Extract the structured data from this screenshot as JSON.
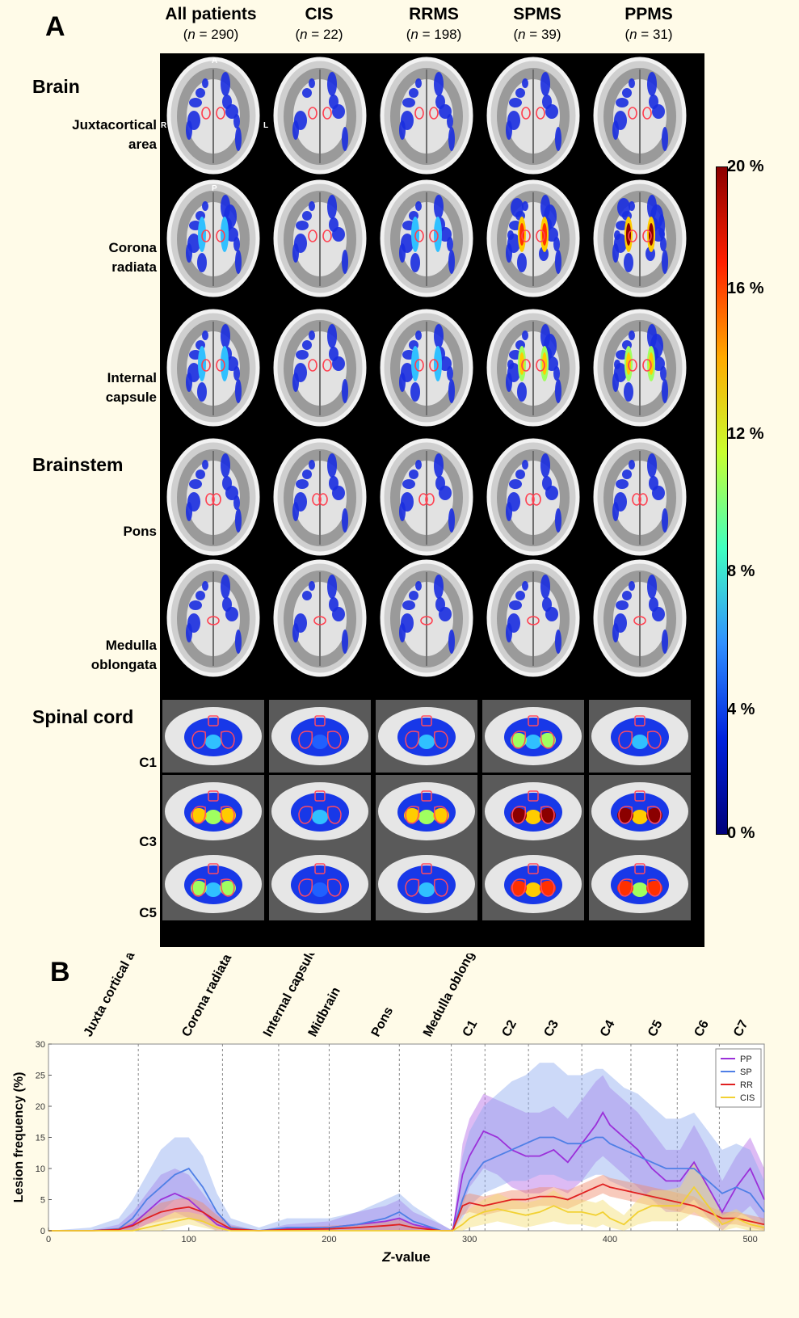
{
  "panel_a": {
    "letter": "A",
    "columns": [
      {
        "title": "All patients",
        "n_prefix": "n",
        "n_value": " = 290"
      },
      {
        "title": "CIS",
        "n_prefix": "n",
        "n_value": " = 22"
      },
      {
        "title": "RRMS",
        "n_prefix": "n",
        "n_value": " = 198"
      },
      {
        "title": "SPMS",
        "n_prefix": "n",
        "n_value": " = 39"
      },
      {
        "title": "PPMS",
        "n_prefix": "n",
        "n_value": " = 31"
      }
    ],
    "sections": {
      "brain": "Brain",
      "brainstem": "Brainstem",
      "spinal": "Spinal cord"
    },
    "rows": [
      {
        "label1": "Juxtacortical",
        "label2": "area"
      },
      {
        "label1": "Corona",
        "label2": "radiata"
      },
      {
        "label1": "Internal",
        "label2": "capsule"
      },
      {
        "label1": "Pons",
        "label2": ""
      },
      {
        "label1": "Medulla",
        "label2": "oblongata"
      },
      {
        "label1": "C1",
        "label2": ""
      },
      {
        "label1": "C3",
        "label2": ""
      },
      {
        "label1": "C5",
        "label2": ""
      }
    ],
    "orientation": {
      "anterior": "A",
      "posterior": "P",
      "right": "R",
      "left": "L"
    },
    "colorbar_ticks": [
      "20 %",
      "16 %",
      "12 %",
      "8 %",
      "4 %",
      "0 %"
    ],
    "colorbar_colors": [
      "#8b0000",
      "#ff2000",
      "#ffaa00",
      "#c8ff30",
      "#40ffc0",
      "#3090ff",
      "#0022dd",
      "#00007a"
    ]
  },
  "panel_b": {
    "letter": "B"
  },
  "chart_data": {
    "type": "line",
    "xlabel_prefix": "Z",
    "xlabel_suffix": "-value",
    "ylabel": "Lesion frequency (%)",
    "xlim": [
      0,
      510
    ],
    "ylim": [
      0,
      30
    ],
    "x_ticks": [
      "0",
      "100",
      "200",
      "300",
      "400",
      "500"
    ],
    "y_ticks": [
      "0",
      "5",
      "10",
      "15",
      "20",
      "25",
      "30"
    ],
    "regions": [
      {
        "label": "Juxta cortical area",
        "x": 30
      },
      {
        "label": "Corona radiata",
        "x": 100
      },
      {
        "label": "Internal capsule",
        "x": 158
      },
      {
        "label": "Midbrain",
        "x": 190
      },
      {
        "label": "Pons",
        "x": 235
      },
      {
        "label": "Medulla oblongata",
        "x": 272
      },
      {
        "label": "C1",
        "x": 300
      },
      {
        "label": "C2",
        "x": 328
      },
      {
        "label": "C3",
        "x": 358
      },
      {
        "label": "C4",
        "x": 398
      },
      {
        "label": "C5",
        "x": 432
      },
      {
        "label": "C6",
        "x": 465
      },
      {
        "label": "C7",
        "x": 493
      }
    ],
    "boundaries": [
      64,
      124,
      164,
      200,
      250,
      287,
      311,
      342,
      380,
      415,
      448,
      478
    ],
    "series": [
      {
        "name": "PP",
        "color": "#9b30d9",
        "band": "#b469e6",
        "x": [
          0,
          30,
          50,
          60,
          70,
          80,
          90,
          100,
          110,
          120,
          130,
          150,
          170,
          200,
          220,
          240,
          250,
          260,
          280,
          288,
          295,
          300,
          310,
          320,
          330,
          340,
          350,
          360,
          370,
          380,
          390,
          395,
          400,
          410,
          420,
          430,
          440,
          450,
          460,
          470,
          480,
          490,
          500,
          510
        ],
        "y": [
          0,
          0,
          0.2,
          1,
          3,
          5,
          6,
          5,
          3,
          1,
          0.2,
          0,
          0.3,
          0.5,
          1,
          1.5,
          2,
          1,
          0,
          0,
          9,
          12,
          16,
          15,
          13,
          12,
          12,
          13,
          11,
          14,
          17,
          19,
          17,
          15,
          13,
          10,
          8,
          8,
          11,
          7,
          3,
          7,
          10,
          5
        ],
        "lo": [
          0,
          0,
          0,
          0,
          1,
          2,
          3,
          2,
          1,
          0,
          0,
          0,
          0,
          0,
          0,
          0,
          0,
          0,
          0,
          0,
          4,
          7,
          10,
          9,
          7,
          6,
          6,
          7,
          6,
          8,
          11,
          12,
          11,
          9,
          7,
          5,
          3,
          3,
          5,
          2,
          0,
          2,
          4,
          1
        ],
        "hi": [
          0,
          0,
          1,
          3,
          6,
          9,
          10,
          9,
          6,
          3,
          1,
          0,
          1,
          1.5,
          3,
          4,
          5,
          3,
          1,
          0,
          14,
          18,
          22,
          21,
          20,
          19,
          19,
          20,
          18,
          21,
          24,
          25,
          23,
          21,
          19,
          16,
          13,
          13,
          17,
          13,
          8,
          12,
          15,
          10
        ]
      },
      {
        "name": "SP",
        "color": "#4f7fe6",
        "band": "#8eabf0",
        "x": [
          0,
          30,
          50,
          60,
          70,
          80,
          90,
          100,
          110,
          120,
          130,
          150,
          170,
          200,
          220,
          240,
          250,
          260,
          280,
          288,
          295,
          300,
          310,
          320,
          330,
          340,
          350,
          360,
          370,
          380,
          390,
          395,
          400,
          410,
          420,
          430,
          440,
          450,
          460,
          470,
          480,
          490,
          500,
          510
        ],
        "y": [
          0,
          0,
          0.3,
          2,
          5,
          7,
          9,
          10,
          7,
          3,
          0.5,
          0,
          0.5,
          0.5,
          1,
          2,
          3,
          1.5,
          0,
          0,
          5,
          8,
          11,
          12,
          13,
          14,
          15,
          15,
          14,
          14,
          15,
          15,
          14,
          13,
          12,
          11,
          10,
          10,
          10,
          8,
          6,
          7,
          6,
          3
        ],
        "lo": [
          0,
          0,
          0,
          0,
          2,
          3,
          5,
          5,
          3,
          1,
          0,
          0,
          0,
          0,
          0,
          0,
          0,
          0,
          0,
          0,
          2,
          4,
          6,
          7,
          8,
          8,
          9,
          9,
          8,
          8,
          9,
          9,
          8,
          7,
          6,
          5,
          4,
          4,
          5,
          3,
          2,
          3,
          2,
          0
        ],
        "hi": [
          0,
          0.5,
          2,
          5,
          9,
          13,
          15,
          15,
          12,
          6,
          2,
          0.5,
          2,
          2,
          3,
          5,
          6,
          4,
          1,
          0,
          12,
          16,
          20,
          22,
          24,
          25,
          27,
          27,
          25,
          25,
          26,
          26,
          25,
          23,
          22,
          20,
          18,
          18,
          19,
          16,
          13,
          14,
          13,
          8
        ]
      },
      {
        "name": "RR",
        "color": "#e02020",
        "band": "#f08a6a",
        "x": [
          0,
          30,
          50,
          60,
          70,
          80,
          90,
          100,
          110,
          120,
          130,
          150,
          170,
          200,
          220,
          240,
          250,
          260,
          280,
          288,
          295,
          300,
          310,
          320,
          330,
          340,
          350,
          360,
          370,
          380,
          390,
          395,
          400,
          410,
          420,
          430,
          440,
          450,
          460,
          470,
          480,
          490,
          500,
          510
        ],
        "y": [
          0,
          0,
          0.2,
          0.8,
          2,
          3,
          3.5,
          3.8,
          3,
          1.5,
          0.3,
          0,
          0.2,
          0.3,
          0.5,
          0.8,
          1,
          0.5,
          0,
          0,
          4,
          4.5,
          4,
          4.5,
          5,
          5,
          5.5,
          5.5,
          5,
          6,
          7,
          7.5,
          7,
          6.5,
          6,
          5.5,
          5,
          4.5,
          4,
          3,
          2,
          2,
          1.5,
          1
        ],
        "lo": [
          0,
          0,
          0,
          0,
          1,
          1.5,
          2,
          2.2,
          1.5,
          0.5,
          0,
          0,
          0,
          0,
          0,
          0,
          0,
          0,
          0,
          0,
          2.5,
          3,
          2.5,
          3,
          3.5,
          3.5,
          4,
          4,
          3.5,
          4.5,
          5.5,
          6,
          5.5,
          5,
          4.5,
          4,
          3.5,
          3,
          2.5,
          2,
          1,
          1,
          0.5,
          0
        ],
        "hi": [
          0,
          0,
          0.5,
          1.5,
          3,
          4.5,
          5,
          5.5,
          4.5,
          2.5,
          0.8,
          0,
          0.5,
          0.8,
          1,
          1.5,
          2,
          1,
          0,
          0,
          5.5,
          6,
          5.5,
          6,
          6.5,
          6.5,
          7,
          7,
          6.5,
          7.5,
          8.5,
          9,
          8.5,
          8,
          7.5,
          7,
          6.5,
          6,
          5.5,
          4,
          3,
          3,
          2.5,
          2
        ]
      },
      {
        "name": "CIS",
        "color": "#f2d133",
        "band": "#f5de70",
        "x": [
          0,
          30,
          50,
          60,
          70,
          80,
          90,
          100,
          110,
          120,
          130,
          150,
          170,
          200,
          220,
          240,
          250,
          260,
          280,
          288,
          295,
          300,
          310,
          320,
          330,
          340,
          350,
          360,
          370,
          380,
          390,
          395,
          400,
          410,
          420,
          430,
          440,
          450,
          460,
          470,
          480,
          490,
          500,
          510
        ],
        "y": [
          0,
          0,
          0,
          0,
          0.5,
          1,
          1.5,
          2,
          1.5,
          0.5,
          0,
          0,
          0,
          0,
          0,
          0,
          0,
          0,
          0,
          0,
          1,
          2,
          3,
          3.5,
          3,
          2.5,
          3,
          4,
          3,
          3,
          2.5,
          3,
          2,
          1,
          3,
          4,
          4,
          4,
          7,
          4,
          1,
          2,
          1,
          0.5
        ],
        "lo": [
          0,
          0,
          0,
          0,
          0,
          0,
          0.5,
          1,
          0.5,
          0,
          0,
          0,
          0,
          0,
          0,
          0,
          0,
          0,
          0,
          0,
          0,
          0.5,
          1,
          1.5,
          1,
          0.5,
          1,
          1.5,
          1,
          1,
          0.5,
          1,
          0.5,
          0,
          1,
          1.5,
          1.5,
          1.5,
          3,
          1.5,
          0,
          0.5,
          0,
          0
        ],
        "hi": [
          0,
          0,
          0,
          0,
          1,
          2,
          3,
          3,
          2.5,
          1,
          0,
          0,
          0,
          0,
          0,
          0,
          0,
          0,
          0,
          0,
          2,
          3.5,
          5,
          6,
          5,
          4.5,
          5,
          6.5,
          5,
          5,
          4.5,
          5,
          4,
          2.5,
          5,
          6.5,
          6.5,
          7,
          11,
          7,
          2.5,
          3.5,
          2,
          1
        ]
      }
    ],
    "legend_position": "top-right",
    "grid": false
  }
}
